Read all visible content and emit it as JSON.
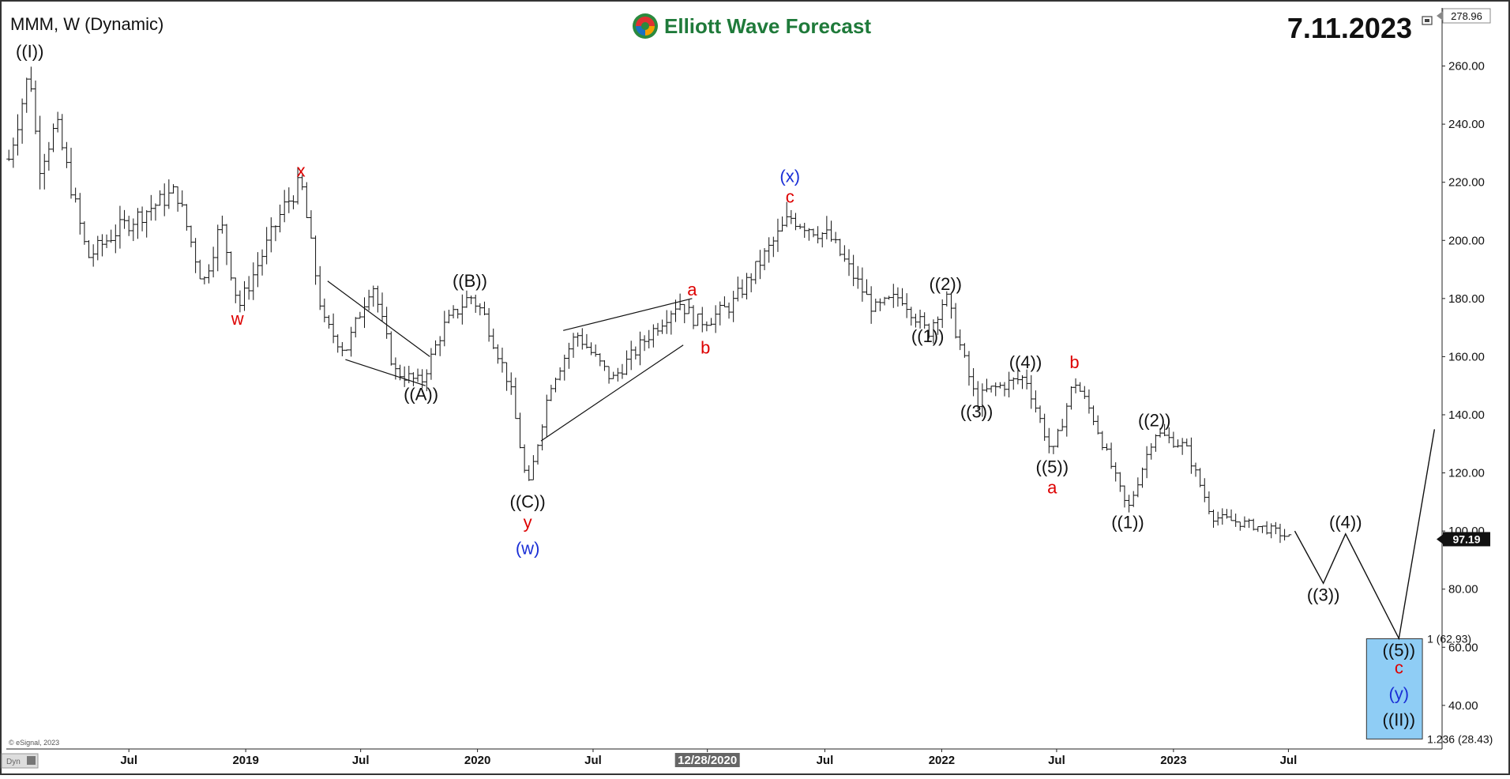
{
  "header": {
    "ticker": "MMM, W (Dynamic)",
    "brand": "Elliott Wave Forecast",
    "date": "7.11.2023",
    "copyright": "© eSignal, 2023",
    "corner_label": "Dyn"
  },
  "price_axis": {
    "top_label": "278.96",
    "last_price": "97.19"
  },
  "chart_data": {
    "type": "ohlc",
    "title": "MMM, W (Dynamic)",
    "ylim": [
      25,
      280
    ],
    "yticks": [
      40,
      60,
      80,
      100,
      120,
      140,
      160,
      180,
      200,
      220,
      240,
      260
    ],
    "ytick_labels": [
      "40.00",
      "60.00",
      "80.00",
      "100.00",
      "120.00",
      "140.00",
      "160.00",
      "180.00",
      "200.00",
      "220.00",
      "240.00",
      "260.00"
    ],
    "xlim": [
      "2017-12-20",
      "2024-02-28"
    ],
    "xticks": [
      {
        "date": "2018-07-01",
        "label": "Jul"
      },
      {
        "date": "2019-01-01",
        "label": "2019"
      },
      {
        "date": "2019-07-01",
        "label": "Jul"
      },
      {
        "date": "2020-01-01",
        "label": "2020"
      },
      {
        "date": "2020-07-01",
        "label": "Jul"
      },
      {
        "date": "2020-12-28",
        "label": "12/28/2020",
        "highlight": true
      },
      {
        "date": "2021-07-01",
        "label": "Jul"
      },
      {
        "date": "2022-01-01",
        "label": "2022"
      },
      {
        "date": "2022-07-01",
        "label": "Jul"
      },
      {
        "date": "2023-01-01",
        "label": "2023"
      },
      {
        "date": "2023-07-01",
        "label": "Jul"
      }
    ],
    "grid": false,
    "price_path": [
      {
        "date": "2017-12-24",
        "price": 228
      },
      {
        "date": "2018-01-26",
        "price": 259
      },
      {
        "date": "2018-02-09",
        "price": 225
      },
      {
        "date": "2018-03-09",
        "price": 240
      },
      {
        "date": "2018-04-27",
        "price": 194
      },
      {
        "date": "2018-06-15",
        "price": 204
      },
      {
        "date": "2018-09-14",
        "price": 217
      },
      {
        "date": "2018-10-26",
        "price": 185
      },
      {
        "date": "2018-11-23",
        "price": 206
      },
      {
        "date": "2018-12-21",
        "price": 177
      },
      {
        "date": "2019-03-01",
        "price": 211
      },
      {
        "date": "2019-03-29",
        "price": 220
      },
      {
        "date": "2019-05-03",
        "price": 172
      },
      {
        "date": "2019-06-07",
        "price": 162
      },
      {
        "date": "2019-07-19",
        "price": 186
      },
      {
        "date": "2019-08-23",
        "price": 155
      },
      {
        "date": "2019-10-04",
        "price": 151
      },
      {
        "date": "2019-11-08",
        "price": 170
      },
      {
        "date": "2019-12-20",
        "price": 181
      },
      {
        "date": "2020-01-10",
        "price": 175
      },
      {
        "date": "2020-02-21",
        "price": 150
      },
      {
        "date": "2020-03-20",
        "price": 114
      },
      {
        "date": "2020-04-24",
        "price": 150
      },
      {
        "date": "2020-06-05",
        "price": 168
      },
      {
        "date": "2020-07-31",
        "price": 152
      },
      {
        "date": "2020-09-25",
        "price": 167
      },
      {
        "date": "2020-11-13",
        "price": 179
      },
      {
        "date": "2020-12-11",
        "price": 172
      },
      {
        "date": "2021-01-01",
        "price": 173
      },
      {
        "date": "2021-02-05",
        "price": 178
      },
      {
        "date": "2021-05-07",
        "price": 208
      },
      {
        "date": "2021-07-09",
        "price": 201
      },
      {
        "date": "2021-09-17",
        "price": 176
      },
      {
        "date": "2021-10-29",
        "price": 181
      },
      {
        "date": "2021-12-10",
        "price": 168
      },
      {
        "date": "2022-01-07",
        "price": 181
      },
      {
        "date": "2022-02-25",
        "price": 144
      },
      {
        "date": "2022-03-11",
        "price": 148
      },
      {
        "date": "2022-05-13",
        "price": 153
      },
      {
        "date": "2022-06-24",
        "price": 126
      },
      {
        "date": "2022-07-29",
        "price": 152
      },
      {
        "date": "2022-08-26",
        "price": 140
      },
      {
        "date": "2022-10-21",
        "price": 107
      },
      {
        "date": "2022-12-02",
        "price": 134
      },
      {
        "date": "2023-01-20",
        "price": 129
      },
      {
        "date": "2023-03-03",
        "price": 105
      },
      {
        "date": "2023-05-05",
        "price": 102
      },
      {
        "date": "2023-06-09",
        "price": 100
      },
      {
        "date": "2023-07-07",
        "price": 97.19
      }
    ],
    "projection": [
      {
        "date": "2023-07-11",
        "price": 100
      },
      {
        "date": "2023-08-25",
        "price": 82
      },
      {
        "date": "2023-09-29",
        "price": 99
      },
      {
        "date": "2023-12-22",
        "price": 63
      },
      {
        "date": "2024-02-16",
        "price": 135
      }
    ],
    "pattern_lines": [
      {
        "from": {
          "date": "2019-05-10",
          "price": 186
        },
        "to": {
          "date": "2019-10-18",
          "price": 160
        }
      },
      {
        "from": {
          "date": "2019-06-07",
          "price": 159
        },
        "to": {
          "date": "2019-10-11",
          "price": 150
        }
      },
      {
        "from": {
          "date": "2020-05-15",
          "price": 169
        },
        "to": {
          "date": "2020-12-04",
          "price": 180
        }
      },
      {
        "from": {
          "date": "2020-04-10",
          "price": 131
        },
        "to": {
          "date": "2020-11-20",
          "price": 164
        }
      }
    ],
    "target_box": {
      "from": "2023-11-01",
      "to": "2024-01-28",
      "top": 62.93,
      "bottom": 28.43
    },
    "fib_labels": [
      {
        "text": "1 (62.93)",
        "price": 62.93
      },
      {
        "text": "1.236 (28.43)",
        "price": 28.43
      }
    ],
    "wave_labels": [
      {
        "text": "((I))",
        "date": "2018-01-26",
        "price": 263,
        "color": "#111111",
        "size": 26
      },
      {
        "text": "w",
        "date": "2018-12-19",
        "price": 171,
        "color": "#dd0000",
        "size": 26
      },
      {
        "text": "x",
        "date": "2019-03-29",
        "price": 222,
        "color": "#dd0000",
        "size": 26
      },
      {
        "text": "((A))",
        "date": "2019-10-04",
        "price": 145,
        "color": "#111111",
        "size": 20
      },
      {
        "text": "((B))",
        "date": "2019-12-20",
        "price": 184,
        "color": "#111111",
        "size": 20
      },
      {
        "text": "((C))",
        "date": "2020-03-20",
        "price": 108,
        "color": "#111111",
        "size": 20
      },
      {
        "text": "y",
        "date": "2020-03-20",
        "price": 101,
        "color": "#dd0000",
        "size": 24
      },
      {
        "text": "(w)",
        "date": "2020-03-20",
        "price": 92,
        "color": "#1a2fd6",
        "size": 26
      },
      {
        "text": "a",
        "date": "2020-12-04",
        "price": 181,
        "color": "#dd0000",
        "size": 24
      },
      {
        "text": "b",
        "date": "2020-12-25",
        "price": 161,
        "color": "#dd0000",
        "size": 24
      },
      {
        "text": "c",
        "date": "2021-05-07",
        "price": 213,
        "color": "#dd0000",
        "size": 24
      },
      {
        "text": "(x)",
        "date": "2021-05-07",
        "price": 220,
        "color": "#1a2fd6",
        "size": 26
      },
      {
        "text": "((1))",
        "date": "2021-12-10",
        "price": 165,
        "color": "#111111",
        "size": 20
      },
      {
        "text": "((2))",
        "date": "2022-01-07",
        "price": 183,
        "color": "#111111",
        "size": 20
      },
      {
        "text": "((3))",
        "date": "2022-02-25",
        "price": 139,
        "color": "#111111",
        "size": 20
      },
      {
        "text": "((4))",
        "date": "2022-05-13",
        "price": 156,
        "color": "#111111",
        "size": 20
      },
      {
        "text": "((5))",
        "date": "2022-06-24",
        "price": 120,
        "color": "#111111",
        "size": 20
      },
      {
        "text": "a",
        "date": "2022-06-24",
        "price": 113,
        "color": "#dd0000",
        "size": 24
      },
      {
        "text": "b",
        "date": "2022-07-29",
        "price": 156,
        "color": "#dd0000",
        "size": 24
      },
      {
        "text": "((1))",
        "date": "2022-10-21",
        "price": 101,
        "color": "#111111",
        "size": 20
      },
      {
        "text": "((2))",
        "date": "2022-12-02",
        "price": 136,
        "color": "#111111",
        "size": 20
      },
      {
        "text": "((3))",
        "date": "2023-08-25",
        "price": 76,
        "color": "#111111",
        "size": 20
      },
      {
        "text": "((4))",
        "date": "2023-09-29",
        "price": 101,
        "color": "#111111",
        "size": 20
      },
      {
        "text": "((5))",
        "date": "2023-12-22",
        "price": 57,
        "color": "#111111",
        "size": 20
      },
      {
        "text": "c",
        "date": "2023-12-22",
        "price": 51,
        "color": "#dd0000",
        "size": 24
      },
      {
        "text": "(y)",
        "date": "2023-12-22",
        "price": 42,
        "color": "#1a2fd6",
        "size": 28
      },
      {
        "text": "((II))",
        "date": "2023-12-22",
        "price": 33,
        "color": "#111111",
        "size": 32
      }
    ]
  }
}
